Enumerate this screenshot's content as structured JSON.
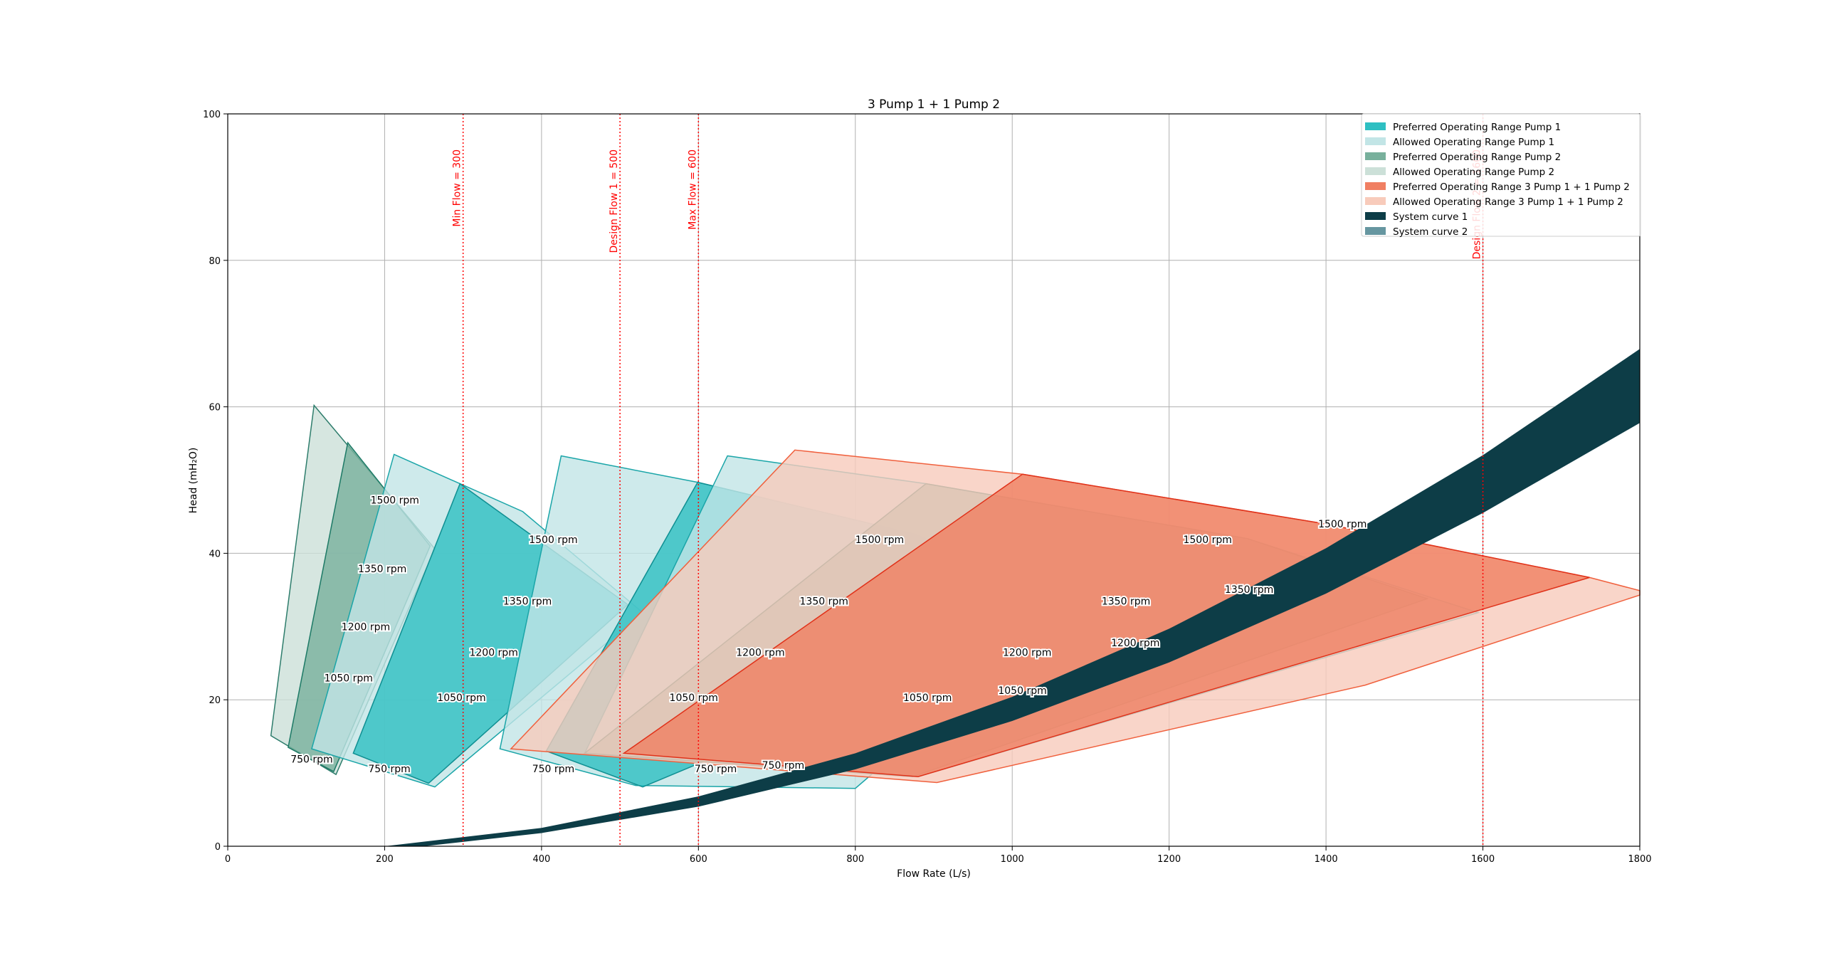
{
  "chart_data": {
    "type": "area",
    "title": "3 Pump 1 + 1 Pump 2",
    "xlabel": "Flow Rate (L/s)",
    "ylabel": "Head (mH₂O)",
    "xlim": [
      0,
      1800
    ],
    "ylim": [
      0,
      100
    ],
    "xticks": [
      0,
      200,
      400,
      600,
      800,
      1000,
      1200,
      1400,
      1600,
      1800
    ],
    "yticks": [
      0,
      20,
      40,
      60,
      80,
      100
    ],
    "grid": true,
    "legend_position": "top-right",
    "colors": {
      "pref1": "#2ebfc2",
      "allow1": "#c2e5e6",
      "pref2": "#78b09c",
      "allow2": "#cce0d8",
      "prefc": "#f07f62",
      "allowc": "#f8cbbb",
      "sys1": "#0d3d47",
      "sys2": "#6696a0",
      "vline": "#ff0000"
    },
    "legend": [
      {
        "label": "Preferred Operating Range Pump 1",
        "color": "pref1"
      },
      {
        "label": "Allowed Operating Range Pump 1",
        "color": "allow1"
      },
      {
        "label": "Preferred Operating Range Pump 2",
        "color": "pref2"
      },
      {
        "label": "Allowed Operating Range Pump 2",
        "color": "allow2"
      },
      {
        "label": "Preferred Operating Range 3 Pump 1 + 1 Pump 2",
        "color": "prefc"
      },
      {
        "label": "Allowed Operating Range 3 Pump 1 + 1 Pump 2",
        "color": "allowc"
      },
      {
        "label": "System curve 1",
        "color": "sys1"
      },
      {
        "label": "System curve 2",
        "color": "sys2"
      }
    ],
    "regions": [
      {
        "kind": "allow2",
        "points": [
          [
            110,
            60.2
          ],
          [
            264,
            40.6
          ],
          [
            138,
            9.8
          ],
          [
            55,
            15.1
          ]
        ]
      },
      {
        "kind": "pref2",
        "points": [
          [
            153,
            55.1
          ],
          [
            258,
            41
          ],
          [
            135,
            10.2
          ],
          [
            77,
            13.5
          ]
        ]
      },
      {
        "kind": "allow1",
        "points": [
          [
            212,
            53.5
          ],
          [
            376,
            45.7
          ],
          [
            529,
            31.9
          ],
          [
            264,
            8.1
          ],
          [
            107,
            13.3
          ]
        ]
      },
      {
        "kind": "pref1",
        "points": [
          [
            296,
            49.5
          ],
          [
            510,
            33
          ],
          [
            256,
            8.6
          ],
          [
            160,
            12.7
          ]
        ]
      },
      {
        "kind": "allow1",
        "points": [
          [
            425,
            53.3
          ],
          [
            599,
            49.7
          ],
          [
            880,
            42.5
          ],
          [
            1061,
            31.9
          ],
          [
            800,
            7.9
          ],
          [
            520,
            8.3
          ],
          [
            347,
            13.3
          ]
        ]
      },
      {
        "kind": "pref1",
        "points": [
          [
            599,
            49.7
          ],
          [
            880,
            42.5
          ],
          [
            1061,
            31.9
          ],
          [
            529,
            8.1
          ],
          [
            406,
            13
          ]
        ]
      },
      {
        "kind": "allow1",
        "points": [
          [
            637,
            53.3
          ],
          [
            890,
            49.5
          ],
          [
            1300,
            42
          ],
          [
            1594,
            31.9
          ],
          [
            880,
            9.5
          ],
          [
            455,
            12.7
          ]
        ]
      },
      {
        "kind": "pref2",
        "points": [
          [
            890,
            49.5
          ],
          [
            1300,
            42
          ],
          [
            1529,
            33.8
          ],
          [
            873,
            9.5
          ],
          [
            455,
            12.7
          ]
        ]
      },
      {
        "kind": "allowc",
        "points": [
          [
            723,
            54.1
          ],
          [
            1013,
            50.8
          ],
          [
            1400,
            44
          ],
          [
            1736,
            36.7
          ],
          [
            1800,
            34.9
          ],
          [
            1800,
            34.3
          ],
          [
            1450,
            22
          ],
          [
            904,
            8.7
          ],
          [
            361,
            13.3
          ]
        ]
      },
      {
        "kind": "prefc",
        "points": [
          [
            1013,
            50.8
          ],
          [
            1400,
            44
          ],
          [
            1736,
            36.7
          ],
          [
            880,
            9.5
          ],
          [
            505,
            12.7
          ]
        ]
      }
    ],
    "system_curves": [
      {
        "name": "System curve 1",
        "color": "sys1",
        "q": [
          200,
          400,
          600,
          800,
          1000,
          1200,
          1400,
          1600,
          1800
        ],
        "upper": [
          0,
          2.5,
          6.8,
          12.7,
          20.4,
          29.7,
          40.7,
          53.4,
          67.9
        ],
        "lower_q": [
          250,
          400,
          600,
          800,
          1000,
          1200,
          1400,
          1600,
          1800
        ],
        "lower": [
          0,
          1.8,
          5.4,
          10.5,
          17.1,
          25.1,
          34.5,
          45.5,
          57.8
        ]
      }
    ],
    "vlines": [
      {
        "x": 300,
        "label": "Min Flow = 300"
      },
      {
        "x": 500,
        "label": "Design Flow 1 = 500"
      },
      {
        "x": 600,
        "label": "Max Flow = 600"
      },
      {
        "x": 1600,
        "label": "Design Flow 2 = 1600"
      }
    ],
    "speed_labels": [
      {
        "x": 213,
        "y": 47.3,
        "text": "1500 rpm"
      },
      {
        "x": 197,
        "y": 37.9,
        "text": "1350 rpm"
      },
      {
        "x": 176,
        "y": 30,
        "text": "1200 rpm"
      },
      {
        "x": 154,
        "y": 23,
        "text": "1050 rpm"
      },
      {
        "x": 107,
        "y": 11.9,
        "text": "750 rpm"
      },
      {
        "x": 415,
        "y": 41.9,
        "text": "1500 rpm"
      },
      {
        "x": 382,
        "y": 33.5,
        "text": "1350 rpm"
      },
      {
        "x": 339,
        "y": 26.5,
        "text": "1200 rpm"
      },
      {
        "x": 298,
        "y": 20.3,
        "text": "1050 rpm"
      },
      {
        "x": 206,
        "y": 10.6,
        "text": "750 rpm"
      },
      {
        "x": 415,
        "y": 10.6,
        "text": "750 rpm"
      },
      {
        "x": 594,
        "y": 20.3,
        "text": "1050 rpm"
      },
      {
        "x": 679,
        "y": 26.5,
        "text": "1200 rpm"
      },
      {
        "x": 760,
        "y": 33.5,
        "text": "1350 rpm"
      },
      {
        "x": 831,
        "y": 41.9,
        "text": "1500 rpm"
      },
      {
        "x": 622,
        "y": 10.6,
        "text": "750 rpm"
      },
      {
        "x": 708,
        "y": 11.1,
        "text": "750 rpm"
      },
      {
        "x": 892,
        "y": 20.3,
        "text": "1050 rpm"
      },
      {
        "x": 1019,
        "y": 26.5,
        "text": "1200 rpm"
      },
      {
        "x": 1145,
        "y": 33.5,
        "text": "1350 rpm"
      },
      {
        "x": 1249,
        "y": 41.9,
        "text": "1500 rpm"
      },
      {
        "x": 1013,
        "y": 21.3,
        "text": "1050 rpm"
      },
      {
        "x": 1157,
        "y": 27.8,
        "text": "1200 rpm"
      },
      {
        "x": 1302,
        "y": 35.1,
        "text": "1350 rpm"
      },
      {
        "x": 1421,
        "y": 44,
        "text": "1500 rpm"
      }
    ]
  }
}
